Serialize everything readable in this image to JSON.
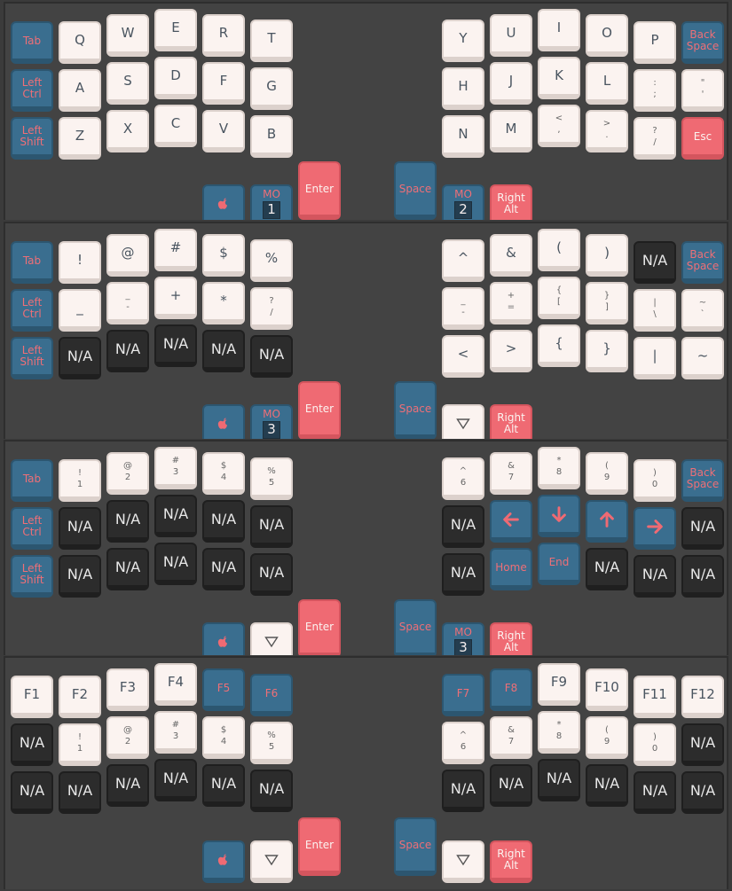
{
  "colors": {
    "white": "#fbf3f0",
    "blue": "#3a6e8f",
    "red": "#ef6a73",
    "dark": "#2c2c2c",
    "bg": "#434343"
  },
  "icons": {
    "apple": "apple-icon",
    "down": "down-triangle-icon",
    "arrows": [
      "left-arrow-icon",
      "down-arrow-icon",
      "up-arrow-icon",
      "right-arrow-icon"
    ]
  },
  "layers": [
    {
      "keys": [
        {
          "c": "blue",
          "t": "Tab"
        },
        {
          "c": "white",
          "t": "Q"
        },
        {
          "c": "white",
          "t": "W"
        },
        {
          "c": "white",
          "t": "E"
        },
        {
          "c": "white",
          "t": "R"
        },
        {
          "c": "white",
          "t": "T"
        },
        {
          "c": "white",
          "t": "Y"
        },
        {
          "c": "white",
          "t": "U"
        },
        {
          "c": "white",
          "t": "I"
        },
        {
          "c": "white",
          "t": "O"
        },
        {
          "c": "white",
          "t": "P"
        },
        {
          "c": "blue",
          "t": "Back\nSpace"
        },
        {
          "c": "blue",
          "t": "Left\nCtrl"
        },
        {
          "c": "white",
          "t": "A"
        },
        {
          "c": "white",
          "t": "S"
        },
        {
          "c": "white",
          "t": "D"
        },
        {
          "c": "white",
          "t": "F"
        },
        {
          "c": "white",
          "t": "G"
        },
        {
          "c": "white",
          "t": "H"
        },
        {
          "c": "white",
          "t": "J"
        },
        {
          "c": "white",
          "t": "K"
        },
        {
          "c": "white",
          "t": "L"
        },
        {
          "c": "white",
          "t": ":\n;",
          "d": true
        },
        {
          "c": "white",
          "t": "\"\n'",
          "d": true
        },
        {
          "c": "blue",
          "t": "Left\nShift"
        },
        {
          "c": "white",
          "t": "Z"
        },
        {
          "c": "white",
          "t": "X"
        },
        {
          "c": "white",
          "t": "C"
        },
        {
          "c": "white",
          "t": "V"
        },
        {
          "c": "white",
          "t": "B"
        },
        {
          "c": "white",
          "t": "N"
        },
        {
          "c": "white",
          "t": "M"
        },
        {
          "c": "white",
          "t": "<\n,",
          "d": true
        },
        {
          "c": "white",
          "t": ">\n.",
          "d": true
        },
        {
          "c": "white",
          "t": "?\n/",
          "d": true
        },
        {
          "c": "red",
          "t": "Esc"
        }
      ],
      "thumbs": [
        {
          "c": "blue",
          "t": "",
          "icon": "apple"
        },
        {
          "c": "blue",
          "t": "MO",
          "mo": "1"
        },
        {
          "c": "red",
          "t": "Enter",
          "tall": true
        },
        {
          "c": "blue",
          "t": "Space",
          "tall": true
        },
        {
          "c": "blue",
          "t": "MO",
          "mo": "2"
        },
        {
          "c": "red",
          "t": "Right\nAlt"
        }
      ]
    },
    {
      "keys": [
        {
          "c": "blue",
          "t": "Tab"
        },
        {
          "c": "white",
          "t": "!"
        },
        {
          "c": "white",
          "t": "@"
        },
        {
          "c": "white",
          "t": "#"
        },
        {
          "c": "white",
          "t": "$"
        },
        {
          "c": "white",
          "t": "%"
        },
        {
          "c": "white",
          "t": "^"
        },
        {
          "c": "white",
          "t": "&"
        },
        {
          "c": "white",
          "t": "("
        },
        {
          "c": "white",
          "t": ")"
        },
        {
          "c": "dark",
          "t": "N/A"
        },
        {
          "c": "blue",
          "t": "Back\nSpace"
        },
        {
          "c": "blue",
          "t": "Left\nCtrl"
        },
        {
          "c": "white",
          "t": "_"
        },
        {
          "c": "white",
          "t": "_\n-",
          "d": true
        },
        {
          "c": "white",
          "t": "+"
        },
        {
          "c": "white",
          "t": "*"
        },
        {
          "c": "white",
          "t": "?\n/",
          "d": true
        },
        {
          "c": "white",
          "t": "_\n-",
          "d": true
        },
        {
          "c": "white",
          "t": "+\n=",
          "d": true
        },
        {
          "c": "white",
          "t": "{\n[",
          "d": true
        },
        {
          "c": "white",
          "t": "}\n]",
          "d": true
        },
        {
          "c": "white",
          "t": "|\n\\",
          "d": true
        },
        {
          "c": "white",
          "t": "~\n`",
          "d": true
        },
        {
          "c": "blue",
          "t": "Left\nShift"
        },
        {
          "c": "dark",
          "t": "N/A"
        },
        {
          "c": "dark",
          "t": "N/A"
        },
        {
          "c": "dark",
          "t": "N/A"
        },
        {
          "c": "dark",
          "t": "N/A"
        },
        {
          "c": "dark",
          "t": "N/A"
        },
        {
          "c": "white",
          "t": "<"
        },
        {
          "c": "white",
          "t": ">"
        },
        {
          "c": "white",
          "t": "{"
        },
        {
          "c": "white",
          "t": "}"
        },
        {
          "c": "white",
          "t": "|"
        },
        {
          "c": "white",
          "t": "~"
        }
      ],
      "thumbs": [
        {
          "c": "blue",
          "t": "",
          "icon": "apple"
        },
        {
          "c": "blue",
          "t": "MO",
          "mo": "3"
        },
        {
          "c": "red",
          "t": "Enter",
          "tall": true
        },
        {
          "c": "blue",
          "t": "Space",
          "tall": true
        },
        {
          "c": "white",
          "t": "",
          "icon": "down"
        },
        {
          "c": "red",
          "t": "Right\nAlt"
        }
      ]
    },
    {
      "keys": [
        {
          "c": "blue",
          "t": "Tab"
        },
        {
          "c": "white",
          "t": "!\n1",
          "d": true
        },
        {
          "c": "white",
          "t": "@\n2",
          "d": true
        },
        {
          "c": "white",
          "t": "#\n3",
          "d": true
        },
        {
          "c": "white",
          "t": "$\n4",
          "d": true
        },
        {
          "c": "white",
          "t": "%\n5",
          "d": true
        },
        {
          "c": "white",
          "t": "^\n6",
          "d": true
        },
        {
          "c": "white",
          "t": "&\n7",
          "d": true
        },
        {
          "c": "white",
          "t": "*\n8",
          "d": true
        },
        {
          "c": "white",
          "t": "(\n9",
          "d": true
        },
        {
          "c": "white",
          "t": ")\n0",
          "d": true
        },
        {
          "c": "blue",
          "t": "Back\nSpace"
        },
        {
          "c": "blue",
          "t": "Left\nCtrl"
        },
        {
          "c": "dark",
          "t": "N/A"
        },
        {
          "c": "dark",
          "t": "N/A"
        },
        {
          "c": "dark",
          "t": "N/A"
        },
        {
          "c": "dark",
          "t": "N/A"
        },
        {
          "c": "dark",
          "t": "N/A"
        },
        {
          "c": "dark",
          "t": "N/A"
        },
        {
          "c": "blue",
          "t": "",
          "icon": "left"
        },
        {
          "c": "blue",
          "t": "",
          "icon": "downarr"
        },
        {
          "c": "blue",
          "t": "",
          "icon": "up"
        },
        {
          "c": "blue",
          "t": "",
          "icon": "right"
        },
        {
          "c": "dark",
          "t": "N/A"
        },
        {
          "c": "blue",
          "t": "Left\nShift"
        },
        {
          "c": "dark",
          "t": "N/A"
        },
        {
          "c": "dark",
          "t": "N/A"
        },
        {
          "c": "dark",
          "t": "N/A"
        },
        {
          "c": "dark",
          "t": "N/A"
        },
        {
          "c": "dark",
          "t": "N/A"
        },
        {
          "c": "dark",
          "t": "N/A"
        },
        {
          "c": "blue",
          "t": "Home"
        },
        {
          "c": "blue",
          "t": "End"
        },
        {
          "c": "dark",
          "t": "N/A"
        },
        {
          "c": "dark",
          "t": "N/A"
        },
        {
          "c": "dark",
          "t": "N/A"
        }
      ],
      "thumbs": [
        {
          "c": "blue",
          "t": "",
          "icon": "apple"
        },
        {
          "c": "white",
          "t": "",
          "icon": "down"
        },
        {
          "c": "red",
          "t": "Enter",
          "tall": true
        },
        {
          "c": "blue",
          "t": "Space",
          "tall": true
        },
        {
          "c": "blue",
          "t": "MO",
          "mo": "3"
        },
        {
          "c": "red",
          "t": "Right\nAlt"
        }
      ]
    },
    {
      "keys": [
        {
          "c": "white",
          "t": "F1"
        },
        {
          "c": "white",
          "t": "F2"
        },
        {
          "c": "white",
          "t": "F3"
        },
        {
          "c": "white",
          "t": "F4"
        },
        {
          "c": "blue",
          "t": "F5"
        },
        {
          "c": "blue",
          "t": "F6"
        },
        {
          "c": "blue",
          "t": "F7"
        },
        {
          "c": "blue",
          "t": "F8"
        },
        {
          "c": "white",
          "t": "F9"
        },
        {
          "c": "white",
          "t": "F10"
        },
        {
          "c": "white",
          "t": "F11"
        },
        {
          "c": "white",
          "t": "F12"
        },
        {
          "c": "dark",
          "t": "N/A"
        },
        {
          "c": "white",
          "t": "!\n1",
          "d": true
        },
        {
          "c": "white",
          "t": "@\n2",
          "d": true
        },
        {
          "c": "white",
          "t": "#\n3",
          "d": true
        },
        {
          "c": "white",
          "t": "$\n4",
          "d": true
        },
        {
          "c": "white",
          "t": "%\n5",
          "d": true
        },
        {
          "c": "white",
          "t": "^\n6",
          "d": true
        },
        {
          "c": "white",
          "t": "&\n7",
          "d": true
        },
        {
          "c": "white",
          "t": "*\n8",
          "d": true
        },
        {
          "c": "white",
          "t": "(\n9",
          "d": true
        },
        {
          "c": "white",
          "t": ")\n0",
          "d": true
        },
        {
          "c": "dark",
          "t": "N/A"
        },
        {
          "c": "dark",
          "t": "N/A"
        },
        {
          "c": "dark",
          "t": "N/A"
        },
        {
          "c": "dark",
          "t": "N/A"
        },
        {
          "c": "dark",
          "t": "N/A"
        },
        {
          "c": "dark",
          "t": "N/A"
        },
        {
          "c": "dark",
          "t": "N/A"
        },
        {
          "c": "dark",
          "t": "N/A"
        },
        {
          "c": "dark",
          "t": "N/A"
        },
        {
          "c": "dark",
          "t": "N/A"
        },
        {
          "c": "dark",
          "t": "N/A"
        },
        {
          "c": "dark",
          "t": "N/A"
        },
        {
          "c": "dark",
          "t": "N/A"
        }
      ],
      "thumbs": [
        {
          "c": "blue",
          "t": "",
          "icon": "apple"
        },
        {
          "c": "white",
          "t": "",
          "icon": "down"
        },
        {
          "c": "red",
          "t": "Enter",
          "tall": true
        },
        {
          "c": "blue",
          "t": "Space",
          "tall": true
        },
        {
          "c": "white",
          "t": "",
          "icon": "down"
        },
        {
          "c": "red",
          "t": "Right\nAlt"
        }
      ]
    }
  ]
}
